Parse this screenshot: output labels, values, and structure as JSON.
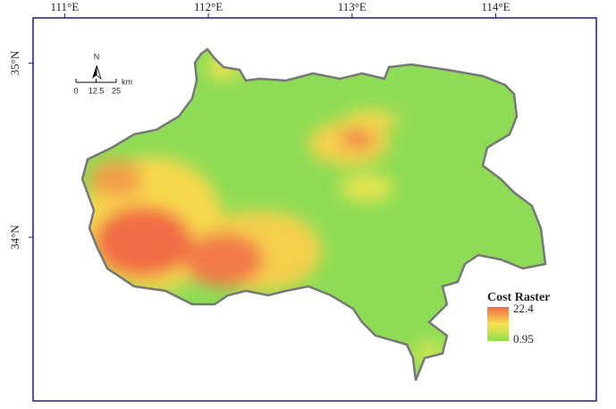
{
  "map": {
    "xlim": [
      110.78,
      114.7
    ],
    "ylim": [
      33.06,
      35.26
    ],
    "xticks": [
      {
        "value": 111,
        "label": "111°E"
      },
      {
        "value": 112,
        "label": "112°E"
      },
      {
        "value": 113,
        "label": "113°E"
      },
      {
        "value": 114,
        "label": "114°E"
      }
    ],
    "yticks": [
      {
        "value": 35,
        "label": "35°N"
      },
      {
        "value": 34,
        "label": "34°N"
      }
    ],
    "north_arrow": "N",
    "scale_bar": {
      "ticks": [
        0,
        12.5,
        25
      ],
      "unit": "km"
    },
    "legend": {
      "title": "Cost Raster",
      "max": 22.4,
      "min": 0.95,
      "colors": [
        "#f2684a",
        "#f7e34f",
        "#8ee04e"
      ]
    }
  }
}
